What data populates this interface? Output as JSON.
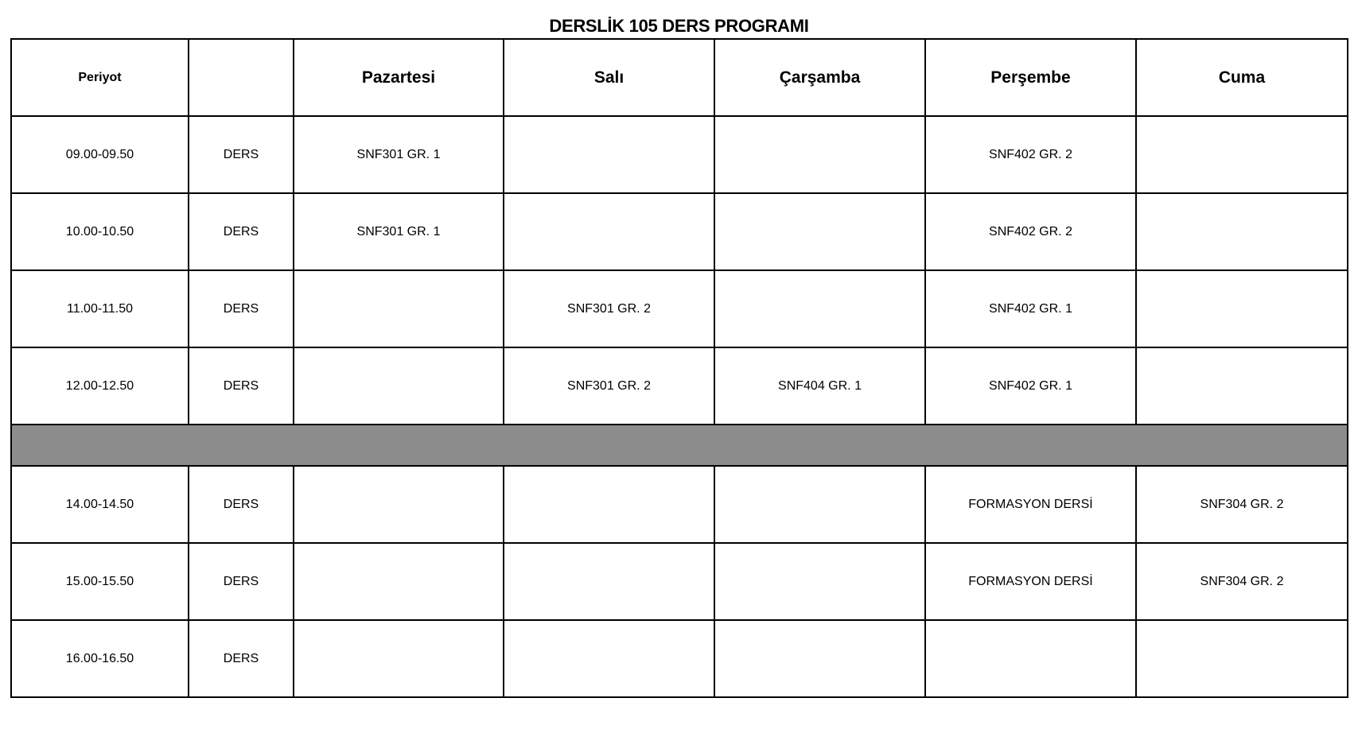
{
  "title": "DERSLİK 105 DERS PROGRAMI",
  "header": {
    "period": "Periyot",
    "type": "",
    "days": [
      "Pazartesi",
      "Salı",
      "Çarşamba",
      "Perşembe",
      "Cuma"
    ]
  },
  "break_row_color": "#8c8c8c",
  "rows": [
    {
      "period": "09.00-09.50",
      "type": "DERS",
      "cells": [
        "SNF301 GR. 1",
        "",
        "",
        "SNF402 GR. 2",
        ""
      ]
    },
    {
      "period": "10.00-10.50",
      "type": "DERS",
      "cells": [
        "SNF301 GR. 1",
        "",
        "",
        "SNF402 GR. 2",
        ""
      ]
    },
    {
      "period": "11.00-11.50",
      "type": "DERS",
      "cells": [
        "",
        "SNF301 GR. 2",
        "",
        "SNF402 GR. 1",
        ""
      ]
    },
    {
      "period": "12.00-12.50",
      "type": "DERS",
      "cells": [
        "",
        "SNF301 GR. 2",
        "SNF404 GR. 1",
        "SNF402 GR. 1",
        ""
      ]
    },
    {
      "break": true
    },
    {
      "period": "14.00-14.50",
      "type": "DERS",
      "cells": [
        "",
        "",
        "",
        "FORMASYON DERSİ",
        "SNF304 GR. 2"
      ]
    },
    {
      "period": "15.00-15.50",
      "type": "DERS",
      "cells": [
        "",
        "",
        "",
        "FORMASYON DERSİ",
        "SNF304 GR. 2"
      ]
    },
    {
      "period": "16.00-16.50",
      "type": "DERS",
      "cells": [
        "",
        "",
        "",
        "",
        ""
      ]
    }
  ]
}
